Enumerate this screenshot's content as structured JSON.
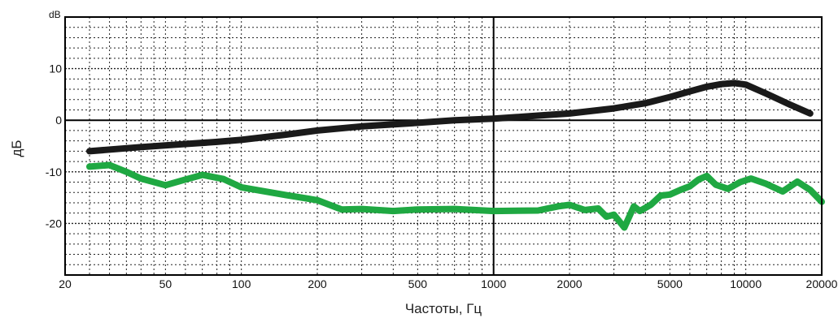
{
  "chart_data": {
    "type": "line",
    "xlabel": "Частоты, Гц",
    "ylabel": "дБ",
    "unit_label": "dB",
    "x_scale": "log",
    "xlim": [
      20,
      20000
    ],
    "ylim": [
      -30,
      20
    ],
    "grid": true,
    "x_ticks": [
      20,
      50,
      100,
      200,
      500,
      1000,
      2000,
      5000,
      10000,
      20000
    ],
    "x_tick_labels": [
      "20",
      "50",
      "100",
      "200",
      "500",
      "1000",
      "2000",
      "5000",
      "10000",
      "20000"
    ],
    "y_ticks": [
      10,
      0,
      -10,
      -20
    ],
    "y_tick_labels": [
      "10",
      "0",
      "-10",
      "-20"
    ],
    "colors": {
      "black_series": "#1a1a1a",
      "green_series": "#1fa842",
      "grid": "#222222"
    },
    "series": [
      {
        "color": "#1a1a1a",
        "x": [
          25,
          40,
          60,
          80,
          100,
          150,
          200,
          300,
          500,
          700,
          1000,
          1500,
          2000,
          3000,
          4000,
          5000,
          6000,
          7000,
          8000,
          9000,
          10000,
          12000,
          15000,
          18000
        ],
        "y": [
          -6,
          -5.2,
          -4.6,
          -4.2,
          -3.8,
          -2.8,
          -2,
          -1.2,
          -0.5,
          0,
          0.3,
          0.9,
          1.3,
          2.3,
          3.3,
          4.5,
          5.6,
          6.5,
          7,
          7.2,
          6.9,
          5.2,
          3,
          1.3
        ]
      },
      {
        "color": "#1fa842",
        "x": [
          25,
          30,
          35,
          40,
          50,
          60,
          70,
          85,
          100,
          150,
          200,
          250,
          300,
          400,
          500,
          700,
          1000,
          1500,
          1800,
          2000,
          2300,
          2600,
          2800,
          3000,
          3300,
          3600,
          3800,
          4200,
          4600,
          5000,
          5500,
          6000,
          6500,
          7000,
          7600,
          8500,
          9500,
          10500,
          12000,
          14000,
          16000,
          18000,
          20000
        ],
        "y": [
          -9,
          -8.7,
          -10,
          -11.3,
          -12.6,
          -11.5,
          -10.6,
          -11.4,
          -13,
          -14.5,
          -15.5,
          -17.3,
          -17.2,
          -17.6,
          -17.3,
          -17.2,
          -17.6,
          -17.5,
          -16.7,
          -16.4,
          -17.4,
          -17.1,
          -18.7,
          -18.3,
          -20.8,
          -16.7,
          -17.6,
          -16.4,
          -14.6,
          -14.4,
          -13.5,
          -12.8,
          -11.5,
          -10.8,
          -12.5,
          -13.3,
          -12,
          -11.3,
          -12.3,
          -13.8,
          -11.9,
          -13.5,
          -15.8
        ]
      }
    ]
  }
}
